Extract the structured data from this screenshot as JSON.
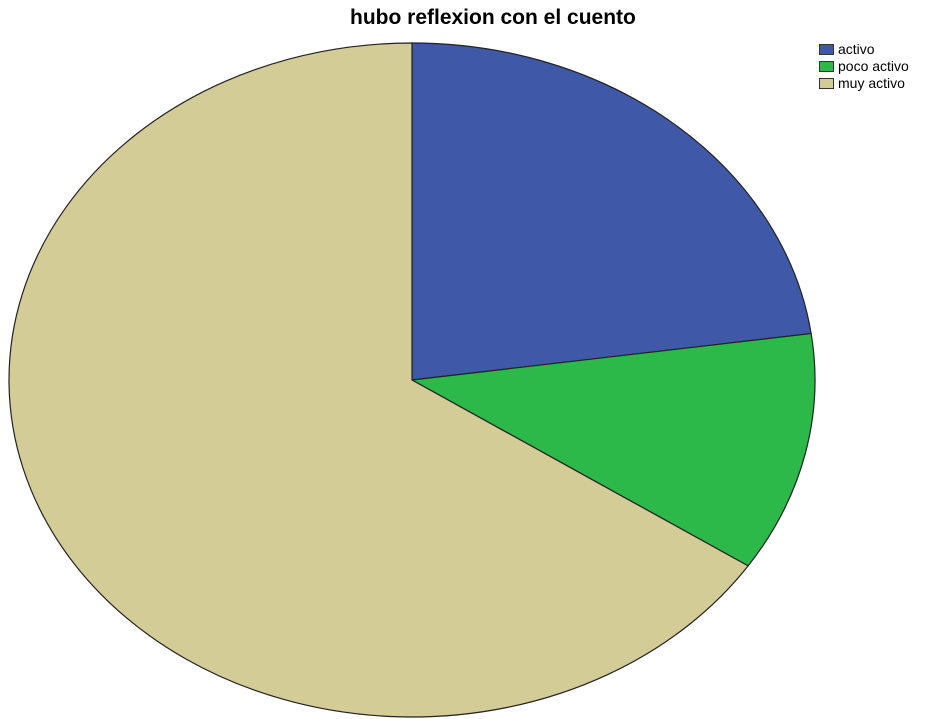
{
  "chart_data": {
    "type": "pie",
    "title": "hubo reflexion con el cuento",
    "legend_position": "top-right",
    "categories": [
      "activo",
      "poco activo",
      "muy activo"
    ],
    "values": [
      22.8,
      11.5,
      65.7
    ],
    "colors": [
      "#3F59A8",
      "#2DB84A",
      "#D4CC96"
    ],
    "start_angle": "12 o'clock",
    "direction": "clockwise"
  }
}
